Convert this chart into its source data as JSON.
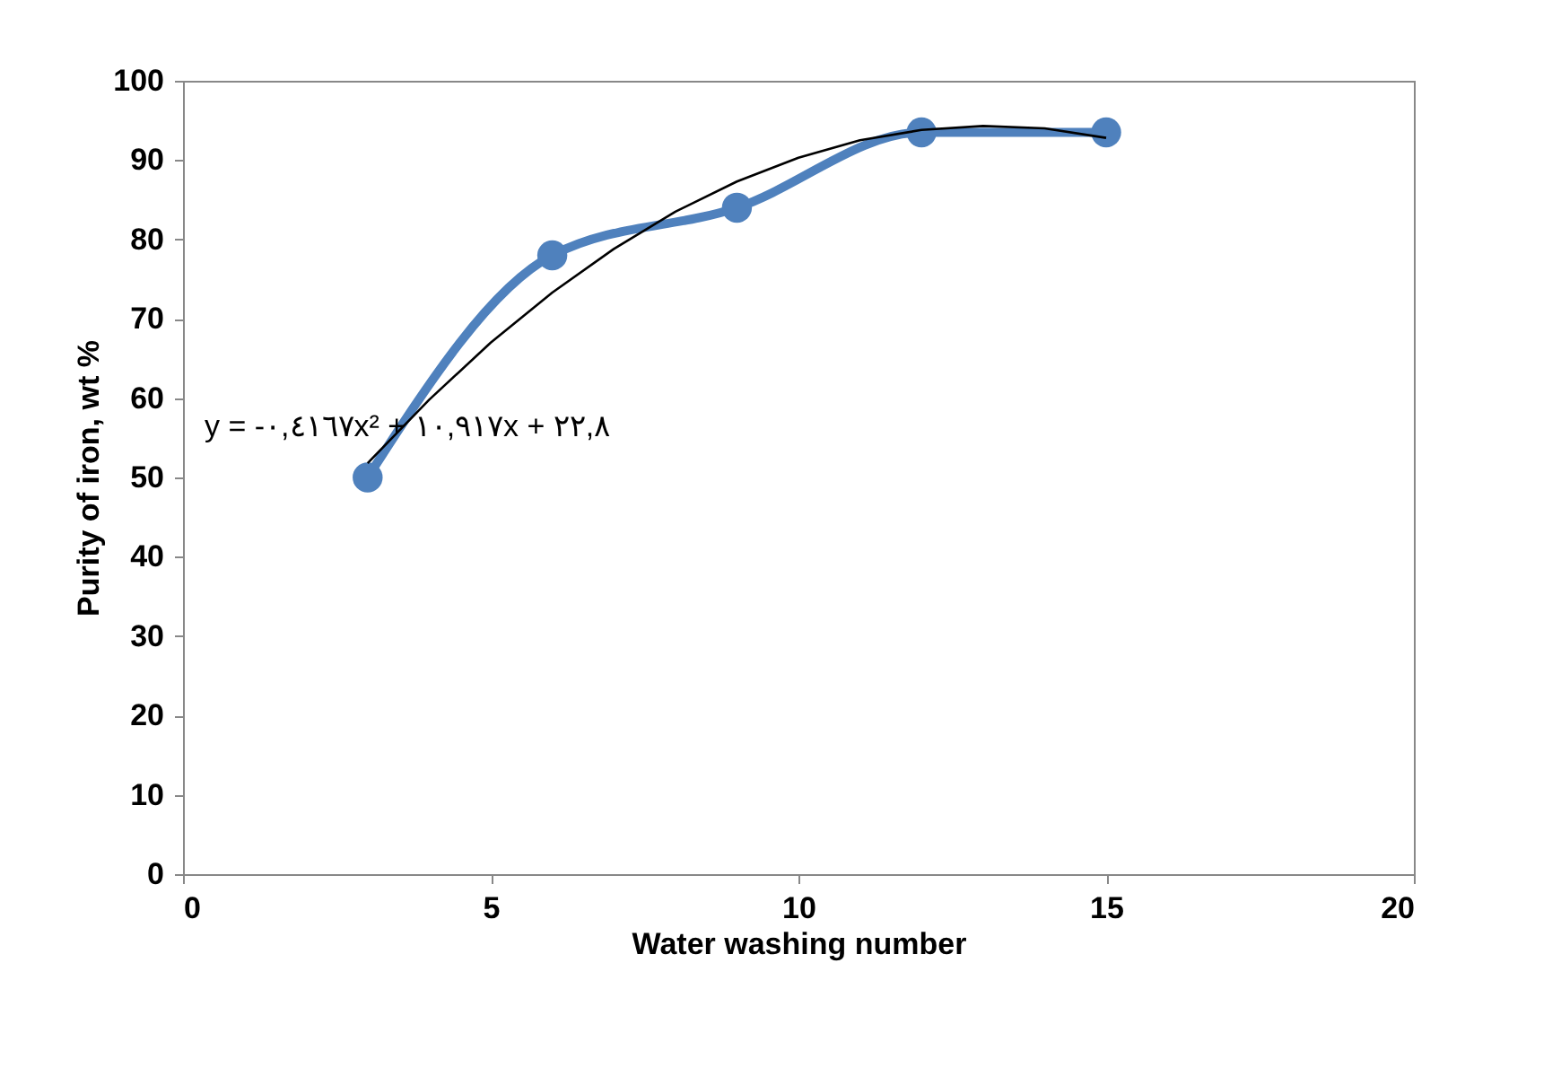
{
  "chart_data": {
    "type": "line",
    "xlabel": "Water washing number",
    "ylabel": "Purity of iron, wt %",
    "xlim": [
      0,
      20
    ],
    "xticks": [
      0,
      5,
      10,
      15,
      20
    ],
    "ylim": [
      0,
      100
    ],
    "yticks": [
      0,
      10,
      20,
      30,
      40,
      50,
      60,
      70,
      80,
      90,
      100
    ],
    "grid": false,
    "legend": false,
    "marker": "circle",
    "line_style": "solid",
    "annotations": [
      "y = -۰,٤١٦٧x² + ١٠,٩١٧x + ٢٢,٨"
    ],
    "series": [
      {
        "color": "#4f81bd",
        "x": [
          3,
          6,
          9,
          12,
          15
        ],
        "values": [
          50,
          78,
          84,
          93.5,
          93.5
        ]
      },
      {
        "color": "#000000",
        "marker": "none",
        "x": [
          3,
          4,
          5,
          6,
          7,
          8,
          9,
          10,
          11,
          12,
          13,
          14,
          15
        ],
        "values": [
          51.8,
          59.8,
          67.0,
          73.3,
          78.8,
          83.5,
          87.3,
          90.3,
          92.5,
          93.8,
          94.3,
          94.0,
          92.8
        ]
      }
    ]
  }
}
